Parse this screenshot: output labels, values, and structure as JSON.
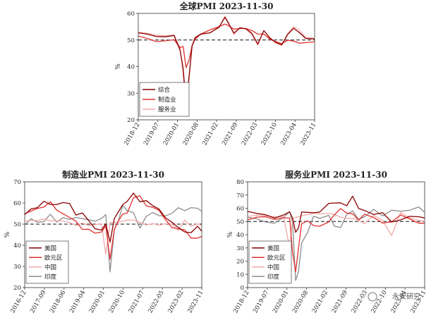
{
  "watermark": "永安研究",
  "chart_data": [
    {
      "type": "line",
      "title": "全球PMI 2023-11-30",
      "ylabel": "%",
      "ylim": [
        20,
        60
      ],
      "yticks": [
        20,
        30,
        40,
        50,
        60
      ],
      "xlim": [
        "2018-12",
        "2023-11"
      ],
      "xtick_labels": [
        "2018-12",
        "2019-07",
        "2020-01",
        "2020-08",
        "2021-02",
        "2021-09",
        "2022-03",
        "2022-10",
        "2023-04",
        "2023-11"
      ],
      "reference_line": 50,
      "legend_position": "bottom-left",
      "x": [
        "2018-12",
        "2019-03",
        "2019-06",
        "2019-09",
        "2019-12",
        "2020-02",
        "2020-03",
        "2020-04",
        "2020-05",
        "2020-06",
        "2020-07",
        "2020-09",
        "2020-12",
        "2021-03",
        "2021-05",
        "2021-06",
        "2021-08",
        "2021-10",
        "2021-12",
        "2022-02",
        "2022-04",
        "2022-06",
        "2022-08",
        "2022-10",
        "2022-12",
        "2023-02",
        "2023-04",
        "2023-06",
        "2023-08",
        "2023-11"
      ],
      "series": [
        {
          "name": "综合",
          "color": "#8b0000",
          "values": [
            52.7,
            52.2,
            51.3,
            51.2,
            51.7,
            46.1,
            39.4,
            26.2,
            36.3,
            47.7,
            50.8,
            52.3,
            52.7,
            54.8,
            58.5,
            56.6,
            52.6,
            54.5,
            54.3,
            52.5,
            48.5,
            53.5,
            50.8,
            49.0,
            48.2,
            52.1,
            54.4,
            52.7,
            50.6,
            50.4
          ]
        },
        {
          "name": "制造业",
          "color": "#e03030",
          "values": [
            51.5,
            50.6,
            49.4,
            49.7,
            50.1,
            47.1,
            47.6,
            39.6,
            42.4,
            47.9,
            50.3,
            52.3,
            53.8,
            55.0,
            56.0,
            55.5,
            54.1,
            54.3,
            54.3,
            53.6,
            52.2,
            52.2,
            50.3,
            49.4,
            48.6,
            49.9,
            49.6,
            48.8,
            49.0,
            49.3
          ]
        },
        {
          "name": "服务业",
          "color": "#f4a9a9",
          "values": [
            53.0,
            52.5,
            51.8,
            51.6,
            51.9,
            47.0,
            37.0,
            24.0,
            35.0,
            48.0,
            51.0,
            52.0,
            52.8,
            54.6,
            59.0,
            57.0,
            52.0,
            54.8,
            54.0,
            52.0,
            48.0,
            53.5,
            51.0,
            49.0,
            48.0,
            52.5,
            55.0,
            53.5,
            51.0,
            50.6
          ]
        }
      ]
    },
    {
      "type": "line",
      "title": "制造业PMI 2023-11-30",
      "ylabel": "%",
      "ylim": [
        20,
        70
      ],
      "yticks": [
        20,
        30,
        40,
        50,
        60,
        70
      ],
      "xlim": [
        "2016-12",
        "2023-11"
      ],
      "xtick_labels": [
        "2016-12",
        "2017-09",
        "2018-06",
        "2019-04",
        "2020-01",
        "2020-10",
        "2021-07",
        "2022-05",
        "2023-02",
        "2023-11"
      ],
      "reference_line": 50,
      "legend_position": "bottom-left",
      "x": [
        "2016-12",
        "2017-03",
        "2017-06",
        "2017-09",
        "2017-12",
        "2018-03",
        "2018-06",
        "2018-09",
        "2018-12",
        "2019-03",
        "2019-06",
        "2019-09",
        "2019-12",
        "2020-02",
        "2020-04",
        "2020-06",
        "2020-08",
        "2020-10",
        "2020-12",
        "2021-03",
        "2021-06",
        "2021-09",
        "2021-12",
        "2022-03",
        "2022-06",
        "2022-09",
        "2022-12",
        "2023-03",
        "2023-06",
        "2023-09",
        "2023-11"
      ],
      "series": [
        {
          "name": "美国",
          "color": "#8b0000",
          "values": [
            54.5,
            57.2,
            57.8,
            60.8,
            59.3,
            59.3,
            60.2,
            59.8,
            54.3,
            55.3,
            51.7,
            47.8,
            47.2,
            50.1,
            41.5,
            52.6,
            56.0,
            59.3,
            60.7,
            64.7,
            60.6,
            61.1,
            58.8,
            57.1,
            53.0,
            50.9,
            48.4,
            46.3,
            46.0,
            49.0,
            46.7
          ]
        },
        {
          "name": "欧元区",
          "color": "#e03030",
          "values": [
            54.9,
            56.2,
            57.4,
            58.1,
            60.6,
            56.6,
            54.9,
            53.2,
            51.4,
            47.5,
            47.6,
            45.7,
            46.3,
            49.2,
            33.4,
            47.4,
            51.7,
            54.8,
            55.2,
            62.5,
            63.4,
            58.6,
            58.0,
            56.5,
            52.1,
            48.4,
            47.8,
            47.3,
            43.4,
            43.4,
            44.2
          ]
        },
        {
          "name": "中国",
          "color": "#f4a9a9",
          "values": [
            51.4,
            51.8,
            51.7,
            52.4,
            51.6,
            51.5,
            51.5,
            50.8,
            49.4,
            50.5,
            49.4,
            49.8,
            50.2,
            35.7,
            50.8,
            50.9,
            51.0,
            51.4,
            51.9,
            51.9,
            50.9,
            49.6,
            50.3,
            49.5,
            50.2,
            50.1,
            47.0,
            51.9,
            49.0,
            50.2,
            49.4
          ]
        },
        {
          "name": "印度",
          "color": "#8c8c8c",
          "values": [
            49.6,
            52.5,
            50.9,
            51.2,
            54.7,
            51.0,
            53.1,
            52.2,
            53.2,
            52.6,
            52.1,
            51.4,
            52.7,
            54.5,
            27.4,
            47.2,
            52.0,
            58.9,
            56.4,
            55.4,
            48.1,
            53.7,
            55.5,
            54.0,
            53.9,
            55.1,
            57.8,
            56.4,
            57.8,
            57.5,
            56.0
          ]
        }
      ]
    },
    {
      "type": "line",
      "title": "服务业PMI 2023-11-30",
      "ylabel": "%",
      "ylim": [
        0,
        80
      ],
      "yticks": [
        0,
        10,
        20,
        30,
        40,
        50,
        60,
        70,
        80
      ],
      "xlim": [
        "2018-12",
        "2023-11"
      ],
      "xtick_labels": [
        "2018-12",
        "2019-07",
        "2020-01",
        "2020-08",
        "2021-02",
        "2021-09",
        "2022-03",
        "2022-10",
        "2023-04",
        "2023-11"
      ],
      "reference_line": 50,
      "legend_position": "bottom-left",
      "x": [
        "2018-12",
        "2019-03",
        "2019-06",
        "2019-09",
        "2019-12",
        "2020-02",
        "2020-03",
        "2020-04",
        "2020-05",
        "2020-06",
        "2020-08",
        "2020-10",
        "2020-12",
        "2021-03",
        "2021-05",
        "2021-07",
        "2021-09",
        "2021-11",
        "2022-01",
        "2022-03",
        "2022-06",
        "2022-09",
        "2022-12",
        "2023-03",
        "2023-06",
        "2023-09",
        "2023-11"
      ],
      "series": [
        {
          "name": "美国",
          "color": "#8b0000",
          "values": [
            57.6,
            56.1,
            55.1,
            52.6,
            55.0,
            57.3,
            52.5,
            41.8,
            45.4,
            57.1,
            56.9,
            56.6,
            57.2,
            63.7,
            64.0,
            64.1,
            61.9,
            69.1,
            59.9,
            58.3,
            55.3,
            56.7,
            49.6,
            51.2,
            53.9,
            53.6,
            52.7
          ]
        },
        {
          "name": "欧元区",
          "color": "#e03030",
          "values": [
            51.2,
            53.3,
            53.6,
            51.6,
            52.8,
            52.6,
            26.4,
            12.0,
            30.5,
            48.3,
            50.5,
            46.9,
            46.4,
            49.6,
            55.2,
            59.8,
            56.4,
            55.9,
            51.1,
            55.6,
            53.0,
            48.8,
            49.8,
            55.0,
            52.0,
            48.7,
            48.7
          ]
        },
        {
          "name": "中国",
          "color": "#f4a9a9",
          "values": [
            53.8,
            54.8,
            54.2,
            53.7,
            53.5,
            30.1,
            52.3,
            53.2,
            53.6,
            54.4,
            55.2,
            56.2,
            55.7,
            56.2,
            55.2,
            53.3,
            52.4,
            52.3,
            51.1,
            48.4,
            54.7,
            50.6,
            39.4,
            56.9,
            52.8,
            50.9,
            50.2
          ]
        },
        {
          "name": "印度",
          "color": "#8c8c8c",
          "values": [
            53.2,
            52.0,
            49.6,
            48.7,
            53.3,
            57.5,
            49.3,
            5.4,
            12.6,
            33.7,
            41.8,
            54.1,
            52.3,
            54.6,
            46.4,
            45.4,
            55.2,
            58.1,
            51.5,
            53.6,
            59.2,
            54.3,
            58.5,
            57.8,
            58.5,
            61.0,
            56.9
          ]
        }
      ]
    }
  ]
}
